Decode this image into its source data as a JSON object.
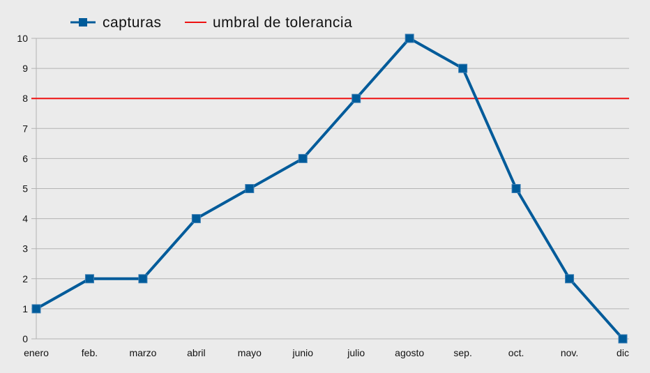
{
  "chart_data": {
    "type": "line",
    "title": "",
    "xlabel": "",
    "ylabel": "",
    "categories": [
      "enero",
      "feb.",
      "marzo",
      "abril",
      "mayo",
      "junio",
      "julio",
      "agosto",
      "sep.",
      "oct.",
      "nov.",
      "dic"
    ],
    "series": [
      {
        "name": "capturas",
        "values": [
          1,
          2,
          2,
          4,
          5,
          6,
          8,
          10,
          9,
          5,
          2,
          0
        ],
        "color": "#005b9a"
      }
    ],
    "threshold": {
      "name": "umbral de tolerancia",
      "value": 8,
      "color": "#ee1111"
    },
    "ylim": [
      0,
      10
    ],
    "yticks": [
      0,
      1,
      2,
      3,
      4,
      5,
      6,
      7,
      8,
      9,
      10
    ],
    "grid": true,
    "legend": "top"
  }
}
